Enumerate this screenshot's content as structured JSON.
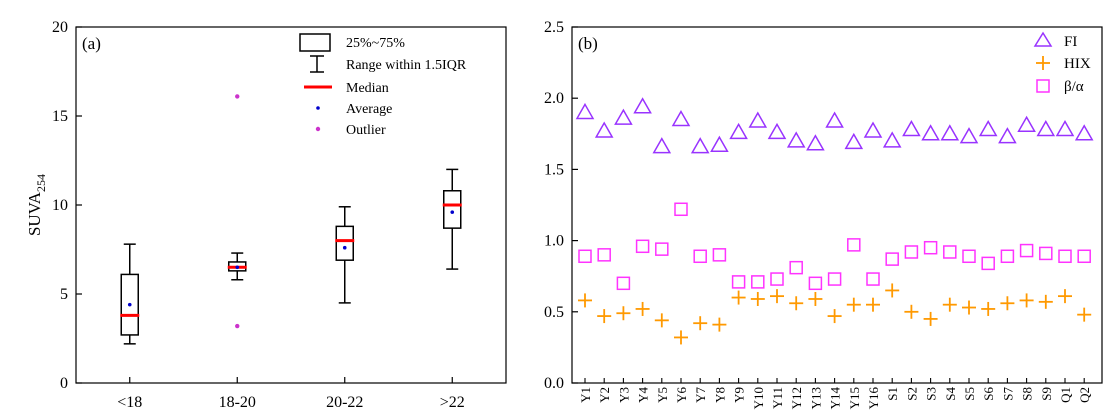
{
  "chart_data": [
    {
      "type": "box",
      "panel_label": "(a)",
      "ylabel": "SUVA",
      "ylabel_subscript": "254",
      "ylim": [
        0,
        20
      ],
      "yticks": [
        "0",
        "5",
        "10",
        "15",
        "20"
      ],
      "categories": [
        "<18",
        "18-20",
        "20-22",
        ">22"
      ],
      "boxes": [
        {
          "q1": 2.7,
          "q3": 6.1,
          "median": 3.8,
          "whisker_low": 2.2,
          "whisker_high": 7.8,
          "mean": 4.4,
          "outliers": []
        },
        {
          "q1": 6.3,
          "q3": 6.8,
          "median": 6.5,
          "whisker_low": 5.8,
          "whisker_high": 7.3,
          "mean": 6.5,
          "outliers": [
            16.1,
            3.2
          ]
        },
        {
          "q1": 6.9,
          "q3": 8.8,
          "median": 8.0,
          "whisker_low": 4.5,
          "whisker_high": 9.9,
          "mean": 7.6,
          "outliers": []
        },
        {
          "q1": 8.7,
          "q3": 10.8,
          "median": 10.0,
          "whisker_low": 6.4,
          "whisker_high": 12.0,
          "mean": 9.6,
          "outliers": []
        }
      ],
      "legend": {
        "box": "25%~75%",
        "range": "Range within 1.5IQR",
        "median": "Median",
        "average": "Average",
        "outlier": "Outlier"
      },
      "colors": {
        "median": "#ff0000",
        "average": "#0000cc",
        "outlier": "#cc33cc",
        "box": "#000000"
      }
    },
    {
      "type": "scatter",
      "panel_label": "(b)",
      "ylim": [
        0,
        2.5
      ],
      "yticks": [
        "0.0",
        "0.5",
        "1.0",
        "1.5",
        "2.0",
        "2.5"
      ],
      "categories": [
        "Y1",
        "Y2",
        "Y3",
        "Y4",
        "Y5",
        "Y6",
        "Y7",
        "Y8",
        "Y9",
        "Y10",
        "Y11",
        "Y12",
        "Y13",
        "Y14",
        "Y15",
        "Y16",
        "S1",
        "S2",
        "S3",
        "S4",
        "S5",
        "S6",
        "S7",
        "S8",
        "S9",
        "Q1",
        "Q2"
      ],
      "series": [
        {
          "name": "FI",
          "color": "#9933ff",
          "marker": "triangle",
          "values": [
            1.9,
            1.77,
            1.86,
            1.94,
            1.66,
            1.85,
            1.66,
            1.67,
            1.76,
            1.84,
            1.76,
            1.7,
            1.68,
            1.84,
            1.69,
            1.77,
            1.7,
            1.78,
            1.75,
            1.75,
            1.73,
            1.78,
            1.73,
            1.81,
            1.78,
            1.78,
            1.75
          ]
        },
        {
          "name": "HIX",
          "color": "#ff9900",
          "marker": "plus",
          "values": [
            0.58,
            0.47,
            0.49,
            0.52,
            0.44,
            0.32,
            0.42,
            0.41,
            0.6,
            0.59,
            0.61,
            0.56,
            0.59,
            0.47,
            0.55,
            0.55,
            0.65,
            0.5,
            0.45,
            0.55,
            0.53,
            0.52,
            0.56,
            0.58,
            0.57,
            0.61,
            0.48
          ]
        },
        {
          "name": "β/α",
          "color": "#ff33ff",
          "marker": "square",
          "values": [
            0.89,
            0.9,
            0.7,
            0.96,
            0.94,
            1.22,
            0.89,
            0.9,
            0.71,
            0.71,
            0.73,
            0.81,
            0.7,
            0.73,
            0.97,
            0.73,
            0.87,
            0.92,
            0.95,
            0.92,
            0.89,
            0.84,
            0.89,
            0.93,
            0.91,
            0.89,
            0.89
          ]
        }
      ]
    }
  ]
}
